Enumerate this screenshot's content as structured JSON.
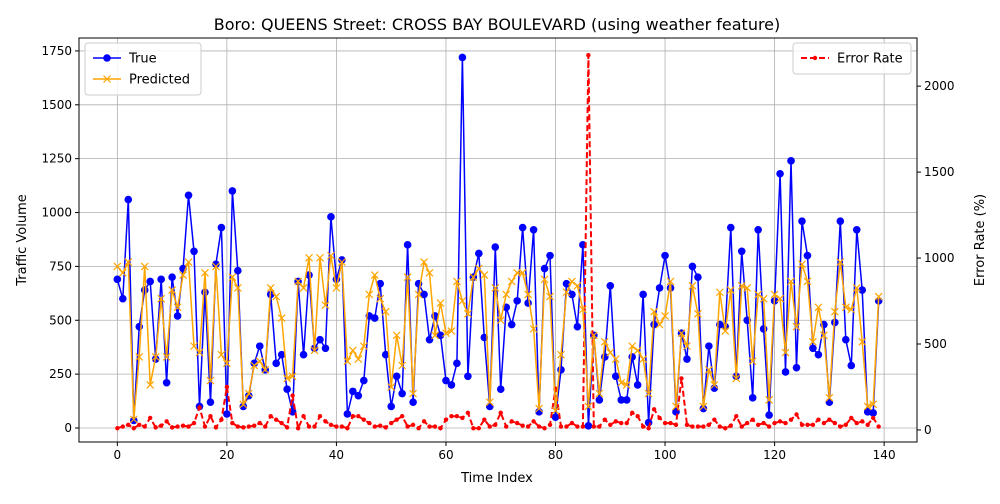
{
  "chart_data": {
    "type": "line",
    "title": "Boro: QUEENS Street: CROSS BAY BOULEVARD (using weather feature)",
    "xlabel": "Time Index",
    "ylabel": "Traffic Volume",
    "y2label": "Error Rate (%)",
    "xlim": [
      -7,
      146
    ],
    "ylim": [
      -65,
      1810
    ],
    "y2lim": [
      -70,
      2280
    ],
    "xticks": [
      0,
      20,
      40,
      60,
      80,
      100,
      120,
      140
    ],
    "yticks": [
      0,
      250,
      500,
      750,
      1000,
      1250,
      1500,
      1750
    ],
    "y2ticks": [
      0,
      500,
      1000,
      1500,
      2000
    ],
    "grid": true,
    "legend_left": {
      "position": "upper-left",
      "entries": [
        "True",
        "Predicted"
      ]
    },
    "legend_right": {
      "position": "upper-right",
      "entries": [
        "Error Rate"
      ]
    },
    "series": [
      {
        "name": "True",
        "axis": "left",
        "color": "#0000ff",
        "marker": "circle",
        "linestyle": "solid",
        "values": [
          690,
          600,
          1060,
          35,
          470,
          640,
          680,
          320,
          690,
          210,
          700,
          520,
          740,
          1080,
          820,
          100,
          630,
          120,
          760,
          930,
          65,
          1100,
          730,
          100,
          150,
          300,
          380,
          270,
          620,
          300,
          340,
          180,
          75,
          680,
          340,
          710,
          370,
          410,
          370,
          980,
          690,
          780,
          65,
          170,
          150,
          220,
          520,
          510,
          670,
          340,
          100,
          240,
          160,
          850,
          120,
          670,
          620,
          410,
          520,
          430,
          220,
          200,
          300,
          1720,
          240,
          700,
          810,
          420,
          100,
          840,
          180,
          560,
          480,
          590,
          930,
          580,
          920,
          75,
          740,
          800,
          50,
          270,
          670,
          620,
          470,
          850,
          10,
          430,
          130,
          330,
          660,
          240,
          130,
          130,
          330,
          200,
          620,
          25,
          480,
          650,
          800,
          650,
          75,
          440,
          320,
          750,
          700,
          90,
          380,
          185,
          480,
          470,
          930,
          240,
          820,
          500,
          140,
          920,
          460,
          60,
          590,
          1180,
          260,
          1240,
          280,
          960,
          800,
          370,
          340,
          480,
          120,
          490,
          960,
          410,
          290,
          920,
          640,
          75,
          70,
          590
        ]
      },
      {
        "name": "Predicted",
        "axis": "left",
        "color": "#ffa500",
        "marker": "x",
        "linestyle": "solid",
        "values": [
          750,
          720,
          770,
          40,
          330,
          750,
          200,
          330,
          600,
          330,
          640,
          560,
          710,
          770,
          380,
          350,
          720,
          220,
          750,
          340,
          300,
          700,
          650,
          110,
          160,
          290,
          310,
          270,
          650,
          610,
          510,
          230,
          240,
          680,
          650,
          790,
          360,
          790,
          570,
          800,
          650,
          770,
          310,
          360,
          320,
          380,
          620,
          710,
          600,
          540,
          190,
          430,
          290,
          700,
          160,
          620,
          770,
          720,
          430,
          580,
          440,
          450,
          680,
          590,
          530,
          700,
          740,
          710,
          120,
          650,
          500,
          620,
          680,
          720,
          720,
          620,
          460,
          90,
          690,
          610,
          80,
          340,
          630,
          680,
          660,
          550,
          100,
          430,
          160,
          400,
          350,
          320,
          210,
          200,
          380,
          360,
          320,
          160,
          540,
          480,
          520,
          680,
          100,
          440,
          380,
          660,
          530,
          100,
          270,
          200,
          630,
          450,
          640,
          230,
          660,
          650,
          310,
          620,
          600,
          130,
          620,
          600,
          350,
          680,
          470,
          760,
          680,
          400,
          560,
          430,
          140,
          540,
          770,
          560,
          550,
          650,
          400,
          100,
          110,
          610
        ]
      },
      {
        "name": "Error Rate",
        "axis": "right",
        "color": "#ff0000",
        "marker": "dot",
        "linestyle": "dashed",
        "values": [
          10,
          20,
          30,
          10,
          30,
          20,
          70,
          15,
          25,
          50,
          15,
          20,
          25,
          20,
          40,
          130,
          20,
          80,
          15,
          60,
          250,
          40,
          20,
          15,
          20,
          25,
          40,
          20,
          80,
          60,
          40,
          15,
          200,
          10,
          80,
          20,
          20,
          80,
          50,
          30,
          20,
          20,
          10,
          80,
          80,
          60,
          40,
          20,
          25,
          15,
          40,
          60,
          80,
          20,
          30,
          10,
          50,
          20,
          20,
          10,
          60,
          80,
          80,
          70,
          100,
          10,
          10,
          60,
          20,
          30,
          100,
          20,
          50,
          40,
          25,
          20,
          50,
          20,
          10,
          30,
          240,
          20,
          20,
          40,
          20,
          20,
          2180,
          20,
          20,
          60,
          30,
          50,
          40,
          40,
          100,
          80,
          20,
          10,
          120,
          70,
          40,
          40,
          30,
          300,
          30,
          20,
          20,
          20,
          30,
          60,
          20,
          10,
          25,
          80,
          20,
          40,
          60,
          30,
          40,
          20,
          40,
          50,
          40,
          60,
          90,
          30,
          30,
          30,
          60,
          40,
          60,
          40,
          20,
          30,
          70,
          40,
          50,
          30,
          70,
          20
        ]
      }
    ]
  }
}
